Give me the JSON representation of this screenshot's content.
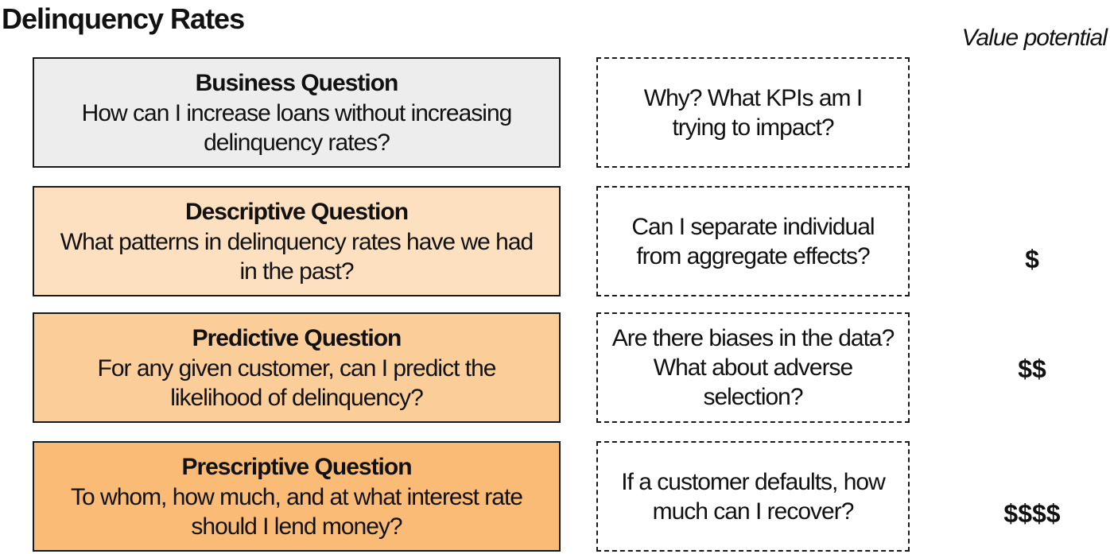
{
  "title": "Delinquency Rates",
  "value_header": "Value potential",
  "colors": {
    "business": "#ededed",
    "descriptive": "#fde0c0",
    "predictive": "#fbcd99",
    "prescriptive": "#f9bb76",
    "border": "#1a1a1a"
  },
  "rows": [
    {
      "question_title": "Business Question",
      "question_text": "How can I increase loans without increasing delinquency rates?",
      "note": "Why? What KPIs am I trying to impact?",
      "value": ""
    },
    {
      "question_title": "Descriptive Question",
      "question_text": "What patterns in delinquency rates have we had in the past?",
      "note": "Can I separate individual from aggregate effects?",
      "value": "$"
    },
    {
      "question_title": "Predictive Question",
      "question_text": "For any given customer, can I predict the likelihood of delinquency?",
      "note": "Are there biases in the data? What about adverse selection?",
      "value": "$$"
    },
    {
      "question_title": "Prescriptive Question",
      "question_text": "To whom, how much, and at what interest rate should I lend money?",
      "note": "If a customer defaults, how much can I recover?",
      "value": "$$$$"
    }
  ]
}
